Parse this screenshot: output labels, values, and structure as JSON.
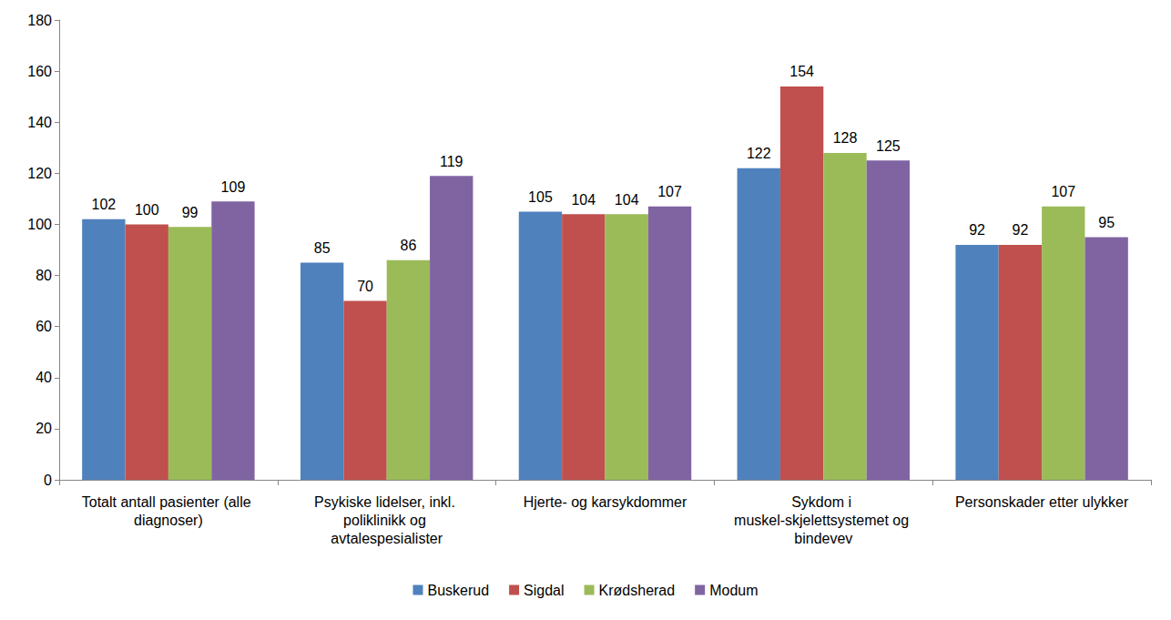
{
  "chart_data": {
    "type": "bar",
    "categories": [
      "Totalt antall pasienter (alle diagnoser)",
      "Psykiske lidelser, inkl. poliklinikk og avtalespesialister",
      "Hjerte- og karsykdommer",
      "Sykdom i muskel-skjelettsystemet og bindevev",
      "Personskader etter ulykker"
    ],
    "series": [
      {
        "name": "Buskerud",
        "color": "#4F81BD",
        "values": [
          102,
          85,
          105,
          122,
          92
        ]
      },
      {
        "name": "Sigdal",
        "color": "#C0504D",
        "values": [
          100,
          70,
          104,
          154,
          92
        ]
      },
      {
        "name": "Krødsherad",
        "color": "#9BBB59",
        "values": [
          99,
          86,
          104,
          128,
          107
        ]
      },
      {
        "name": "Modum",
        "color": "#8064A2",
        "values": [
          109,
          119,
          107,
          125,
          95
        ]
      }
    ],
    "ylim": [
      0,
      180
    ],
    "yticks": [
      0,
      20,
      40,
      60,
      80,
      100,
      120,
      140,
      160,
      180
    ],
    "grid": false,
    "legend": "bottom",
    "data_labels": true
  }
}
